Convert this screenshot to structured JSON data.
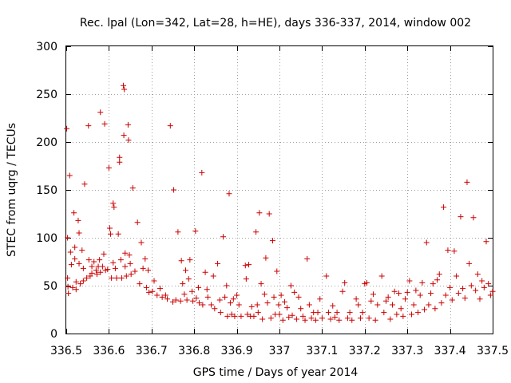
{
  "chart_data": {
    "type": "scatter",
    "title": "Rec. lpal (Lon=342, Lat=28, h=HE), days 336-337, 2014, window 002",
    "xlabel": "GPS time / Days of year 2014",
    "ylabel": "STEC from uqrg / TECUs",
    "xlim": [
      336.5,
      337.5
    ],
    "ylim": [
      0,
      300
    ],
    "xticks": [
      336.5,
      336.6,
      336.7,
      336.8,
      336.9,
      337,
      337.1,
      337.2,
      337.3,
      337.4,
      337.5
    ],
    "xtick_labels": [
      "336.5",
      "336.6",
      "336.7",
      "336.8",
      "336.9",
      "337",
      "337.1",
      "337.2",
      "337.3",
      "337.4",
      "337.5"
    ],
    "yticks": [
      0,
      50,
      100,
      150,
      200,
      250,
      300
    ],
    "ytick_labels": [
      "0",
      "50",
      "100",
      "150",
      "200",
      "250",
      "300"
    ],
    "grid": true,
    "grid_style": "dotted",
    "marker": "+",
    "color": "#cc0000",
    "points": [
      [
        336.501,
        214
      ],
      [
        336.503,
        100
      ],
      [
        336.503,
        58
      ],
      [
        336.504,
        49
      ],
      [
        336.505,
        42
      ],
      [
        336.508,
        165
      ],
      [
        336.51,
        85
      ],
      [
        336.512,
        72
      ],
      [
        336.515,
        48
      ],
      [
        336.518,
        126
      ],
      [
        336.52,
        90
      ],
      [
        336.52,
        78
      ],
      [
        336.523,
        54
      ],
      [
        336.523,
        46
      ],
      [
        336.528,
        118
      ],
      [
        336.53,
        105
      ],
      [
        336.53,
        73
      ],
      [
        336.533,
        52
      ],
      [
        336.537,
        87
      ],
      [
        336.54,
        68
      ],
      [
        336.54,
        55
      ],
      [
        336.543,
        156
      ],
      [
        336.548,
        58
      ],
      [
        336.552,
        217
      ],
      [
        336.553,
        77
      ],
      [
        336.556,
        60
      ],
      [
        336.56,
        70
      ],
      [
        336.56,
        63
      ],
      [
        336.565,
        75
      ],
      [
        336.57,
        66
      ],
      [
        336.572,
        62
      ],
      [
        336.575,
        70
      ],
      [
        336.578,
        77
      ],
      [
        336.58,
        231
      ],
      [
        336.58,
        64
      ],
      [
        336.585,
        70
      ],
      [
        336.588,
        83
      ],
      [
        336.59,
        219
      ],
      [
        336.592,
        66
      ],
      [
        336.597,
        67
      ],
      [
        336.6,
        173
      ],
      [
        336.602,
        110
      ],
      [
        336.604,
        104
      ],
      [
        336.606,
        58
      ],
      [
        336.61,
        74
      ],
      [
        336.61,
        136
      ],
      [
        336.612,
        132
      ],
      [
        336.615,
        68
      ],
      [
        336.618,
        58
      ],
      [
        336.622,
        104
      ],
      [
        336.625,
        184
      ],
      [
        336.625,
        179
      ],
      [
        336.628,
        77
      ],
      [
        336.63,
        58
      ],
      [
        336.634,
        259
      ],
      [
        336.636,
        255
      ],
      [
        336.635,
        207
      ],
      [
        336.638,
        84
      ],
      [
        336.638,
        70
      ],
      [
        336.641,
        60
      ],
      [
        336.645,
        218
      ],
      [
        336.646,
        202
      ],
      [
        336.648,
        82
      ],
      [
        336.65,
        73
      ],
      [
        336.652,
        62
      ],
      [
        336.656,
        152
      ],
      [
        336.661,
        65
      ],
      [
        336.667,
        116
      ],
      [
        336.672,
        52
      ],
      [
        336.676,
        95
      ],
      [
        336.68,
        68
      ],
      [
        336.685,
        78
      ],
      [
        336.688,
        48
      ],
      [
        336.692,
        66
      ],
      [
        336.694,
        43
      ],
      [
        336.702,
        44
      ],
      [
        336.706,
        55
      ],
      [
        336.713,
        40
      ],
      [
        336.72,
        47
      ],
      [
        336.725,
        38
      ],
      [
        336.733,
        40
      ],
      [
        336.737,
        36
      ],
      [
        336.744,
        217
      ],
      [
        336.75,
        33
      ],
      [
        336.752,
        150
      ],
      [
        336.757,
        35
      ],
      [
        336.762,
        106
      ],
      [
        336.768,
        34
      ],
      [
        336.77,
        76
      ],
      [
        336.773,
        52
      ],
      [
        336.777,
        41
      ],
      [
        336.78,
        66
      ],
      [
        336.783,
        35
      ],
      [
        336.787,
        57
      ],
      [
        336.79,
        77
      ],
      [
        336.795,
        44
      ],
      [
        336.797,
        34
      ],
      [
        336.803,
        107
      ],
      [
        336.805,
        37
      ],
      [
        336.81,
        48
      ],
      [
        336.812,
        32
      ],
      [
        336.818,
        168
      ],
      [
        336.82,
        30
      ],
      [
        336.826,
        64
      ],
      [
        336.83,
        46
      ],
      [
        336.832,
        38
      ],
      [
        336.84,
        30
      ],
      [
        336.845,
        60
      ],
      [
        336.848,
        26
      ],
      [
        336.855,
        73
      ],
      [
        336.86,
        35
      ],
      [
        336.862,
        22
      ],
      [
        336.868,
        101
      ],
      [
        336.872,
        38
      ],
      [
        336.876,
        50
      ],
      [
        336.878,
        18
      ],
      [
        336.882,
        146
      ],
      [
        336.885,
        32
      ],
      [
        336.888,
        20
      ],
      [
        336.892,
        36
      ],
      [
        336.895,
        18
      ],
      [
        336.9,
        40
      ],
      [
        336.905,
        30
      ],
      [
        336.91,
        18
      ],
      [
        336.92,
        71
      ],
      [
        336.922,
        57
      ],
      [
        336.925,
        20
      ],
      [
        336.928,
        72
      ],
      [
        336.932,
        18
      ],
      [
        336.935,
        28
      ],
      [
        336.94,
        18
      ],
      [
        336.945,
        106
      ],
      [
        336.948,
        30
      ],
      [
        336.95,
        22
      ],
      [
        336.953,
        126
      ],
      [
        336.957,
        52
      ],
      [
        336.96,
        15
      ],
      [
        336.965,
        41
      ],
      [
        336.968,
        79
      ],
      [
        336.972,
        32
      ],
      [
        336.976,
        125
      ],
      [
        336.98,
        16
      ],
      [
        336.984,
        97
      ],
      [
        336.987,
        38
      ],
      [
        336.99,
        20
      ],
      [
        336.994,
        65
      ],
      [
        336.998,
        30
      ],
      [
        337.0,
        20
      ],
      [
        337.004,
        40
      ],
      [
        337.008,
        14
      ],
      [
        337.012,
        33
      ],
      [
        337.018,
        27
      ],
      [
        337.022,
        17
      ],
      [
        337.027,
        50
      ],
      [
        337.03,
        19
      ],
      [
        337.035,
        43
      ],
      [
        337.04,
        15
      ],
      [
        337.045,
        38
      ],
      [
        337.05,
        26
      ],
      [
        337.055,
        18
      ],
      [
        337.06,
        14
      ],
      [
        337.065,
        78
      ],
      [
        337.07,
        30
      ],
      [
        337.075,
        16
      ],
      [
        337.08,
        22
      ],
      [
        337.085,
        14
      ],
      [
        337.09,
        22
      ],
      [
        337.095,
        36
      ],
      [
        337.1,
        16
      ],
      [
        337.11,
        60
      ],
      [
        337.115,
        22
      ],
      [
        337.12,
        15
      ],
      [
        337.125,
        29
      ],
      [
        337.13,
        17
      ],
      [
        337.135,
        22
      ],
      [
        337.14,
        14
      ],
      [
        337.148,
        44
      ],
      [
        337.153,
        53
      ],
      [
        337.16,
        16
      ],
      [
        337.165,
        22
      ],
      [
        337.17,
        14
      ],
      [
        337.18,
        36
      ],
      [
        337.185,
        30
      ],
      [
        337.19,
        16
      ],
      [
        337.195,
        22
      ],
      [
        337.2,
        52
      ],
      [
        337.205,
        53
      ],
      [
        337.21,
        16
      ],
      [
        337.215,
        34
      ],
      [
        337.22,
        41
      ],
      [
        337.225,
        14
      ],
      [
        337.23,
        30
      ],
      [
        337.24,
        60
      ],
      [
        337.245,
        22
      ],
      [
        337.25,
        34
      ],
      [
        337.255,
        38
      ],
      [
        337.26,
        15
      ],
      [
        337.265,
        30
      ],
      [
        337.27,
        44
      ],
      [
        337.275,
        20
      ],
      [
        337.28,
        42
      ],
      [
        337.285,
        26
      ],
      [
        337.29,
        18
      ],
      [
        337.295,
        36
      ],
      [
        337.3,
        43
      ],
      [
        337.305,
        55
      ],
      [
        337.31,
        20
      ],
      [
        337.315,
        30
      ],
      [
        337.32,
        45
      ],
      [
        337.325,
        22
      ],
      [
        337.33,
        40
      ],
      [
        337.335,
        53
      ],
      [
        337.34,
        25
      ],
      [
        337.345,
        95
      ],
      [
        337.35,
        30
      ],
      [
        337.355,
        42
      ],
      [
        337.36,
        52
      ],
      [
        337.365,
        26
      ],
      [
        337.37,
        56
      ],
      [
        337.375,
        62
      ],
      [
        337.38,
        32
      ],
      [
        337.385,
        132
      ],
      [
        337.39,
        40
      ],
      [
        337.395,
        87
      ],
      [
        337.4,
        48
      ],
      [
        337.405,
        35
      ],
      [
        337.41,
        86
      ],
      [
        337.415,
        60
      ],
      [
        337.42,
        42
      ],
      [
        337.425,
        122
      ],
      [
        337.43,
        47
      ],
      [
        337.435,
        37
      ],
      [
        337.44,
        158
      ],
      [
        337.445,
        73
      ],
      [
        337.45,
        50
      ],
      [
        337.455,
        121
      ],
      [
        337.46,
        45
      ],
      [
        337.465,
        62
      ],
      [
        337.47,
        36
      ],
      [
        337.475,
        55
      ],
      [
        337.48,
        48
      ],
      [
        337.485,
        96
      ],
      [
        337.49,
        52
      ],
      [
        337.495,
        40
      ],
      [
        337.5,
        44
      ]
    ]
  }
}
